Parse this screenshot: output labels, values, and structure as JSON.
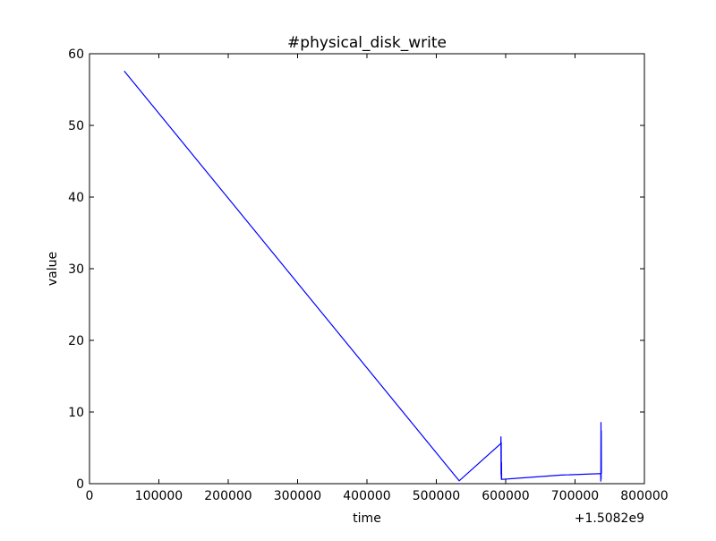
{
  "chart_data": {
    "type": "line",
    "title": "#physical_disk_write",
    "xlabel": "time",
    "ylabel": "value",
    "x_offset_label": "+1.5082e9",
    "x_offset": 1508200000,
    "xlim": [
      0,
      800000
    ],
    "ylim": [
      0,
      60
    ],
    "grid": false,
    "xticks": [
      0,
      100000,
      200000,
      300000,
      400000,
      500000,
      600000,
      700000,
      800000
    ],
    "xtick_labels": [
      "0",
      "100000",
      "200000",
      "300000",
      "400000",
      "500000",
      "600000",
      "700000",
      "800000"
    ],
    "yticks": [
      0,
      10,
      20,
      30,
      40,
      50,
      60
    ],
    "ytick_labels": [
      "0",
      "10",
      "20",
      "30",
      "40",
      "50",
      "60"
    ],
    "series": [
      {
        "color": "#0000ff",
        "x": [
          50000,
          533000,
          593000,
          593200,
          593400,
          593600,
          593800,
          594000,
          594200,
          680000,
          737000,
          737200,
          737400,
          737600,
          737800,
          738000
        ],
        "y": [
          57.6,
          0.4,
          5.6,
          6.6,
          1.2,
          5.8,
          0.6,
          3.0,
          0.6,
          1.2,
          1.4,
          0.3,
          8.6,
          0.6,
          7.4,
          1.4
        ]
      }
    ]
  }
}
